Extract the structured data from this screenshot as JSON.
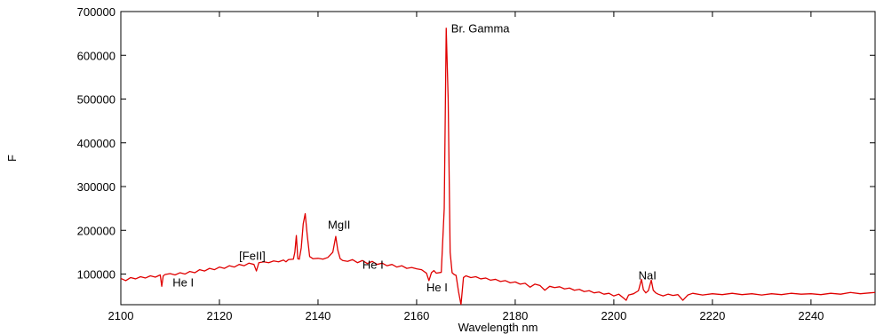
{
  "chart_data": {
    "type": "line",
    "title": "",
    "xlabel": "Wavelength nm",
    "ylabel": "F",
    "xlim": [
      2100,
      2253
    ],
    "ylim": [
      30000,
      700000
    ],
    "grid": false,
    "legend": "none",
    "line_color": "#e00000",
    "x_ticks": [
      2100,
      2120,
      2140,
      2160,
      2180,
      2200,
      2220,
      2240
    ],
    "y_ticks": [
      100000,
      200000,
      300000,
      400000,
      500000,
      600000,
      700000
    ],
    "x_tick_labels": [
      "2100",
      "2120",
      "2140",
      "2160",
      "2180",
      "2200",
      "2220",
      "2240"
    ],
    "y_tick_labels": [
      "100000",
      "200000",
      "300000",
      "400000",
      "500000",
      "600000",
      "700000"
    ],
    "annotations": [
      {
        "text": "He I",
        "x": 2110.5,
        "y": 72000
      },
      {
        "text": "[FeII]",
        "x": 2124,
        "y": 133000
      },
      {
        "text": "MgII",
        "x": 2142,
        "y": 204000
      },
      {
        "text": "He I",
        "x": 2149,
        "y": 112000
      },
      {
        "text": "Br. Gamma",
        "x": 2167,
        "y": 652000
      },
      {
        "text": "He I",
        "x": 2162,
        "y": 60000
      },
      {
        "text": "NaI",
        "x": 2205,
        "y": 88000
      }
    ],
    "series": [
      {
        "x": [
          2100,
          2101,
          2102,
          2103,
          2104,
          2105,
          2106,
          2107,
          2108,
          2108.3,
          2108.6,
          2109,
          2110,
          2111,
          2112,
          2113,
          2114,
          2115,
          2116,
          2117,
          2118,
          2119,
          2120,
          2121,
          2122,
          2123,
          2124,
          2125,
          2126,
          2127,
          2127.5,
          2128,
          2129,
          2130,
          2131,
          2132,
          2133,
          2133.5,
          2134,
          2135,
          2135.3,
          2135.6,
          2135.9,
          2136.2,
          2136.6,
          2137,
          2137.4,
          2137.8,
          2138.3,
          2139,
          2140,
          2141,
          2142,
          2143,
          2143.6,
          2144,
          2144.5,
          2145,
          2146,
          2147,
          2148,
          2149,
          2150,
          2151,
          2152,
          2153,
          2154,
          2155,
          2156,
          2157,
          2158,
          2159,
          2160,
          2161,
          2162,
          2162.5,
          2163,
          2163.5,
          2164,
          2165,
          2165.6,
          2166,
          2166.4,
          2166.8,
          2167.2,
          2167.6,
          2168,
          2168.5,
          2169,
          2169.5,
          2170,
          2171,
          2172,
          2173,
          2174,
          2175,
          2176,
          2177,
          2178,
          2179,
          2180,
          2181,
          2182,
          2183,
          2184,
          2185,
          2186,
          2187,
          2188,
          2189,
          2190,
          2191,
          2192,
          2193,
          2194,
          2195,
          2196,
          2197,
          2198,
          2199,
          2200,
          2201,
          2202,
          2202.5,
          2203,
          2204,
          2205,
          2205.6,
          2206,
          2206.5,
          2207,
          2207.6,
          2208,
          2208.5,
          2209,
          2210,
          2211,
          2212,
          2213,
          2214,
          2215,
          2216,
          2218,
          2220,
          2222,
          2224,
          2226,
          2228,
          2230,
          2232,
          2234,
          2236,
          2238,
          2240,
          2242,
          2244,
          2246,
          2248,
          2250,
          2252,
          2253
        ],
        "y": [
          90000,
          85000,
          92000,
          89000,
          94000,
          91000,
          96000,
          93000,
          98000,
          72000,
          96000,
          99000,
          101000,
          98000,
          103000,
          100000,
          106000,
          103000,
          110000,
          107000,
          113000,
          110000,
          116000,
          113000,
          119000,
          116000,
          122000,
          119000,
          125000,
          122000,
          107000,
          126000,
          128000,
          126000,
          130000,
          128000,
          132000,
          128000,
          133000,
          134000,
          150000,
          188000,
          135000,
          134000,
          160000,
          215000,
          238000,
          190000,
          140000,
          135000,
          136000,
          134000,
          138000,
          150000,
          186000,
          155000,
          135000,
          131000,
          129000,
          133000,
          126000,
          131000,
          124000,
          129000,
          122000,
          125000,
          119000,
          122000,
          116000,
          119000,
          113000,
          115000,
          112000,
          110000,
          102000,
          85000,
          103000,
          108000,
          102000,
          104000,
          250000,
          662000,
          500000,
          150000,
          103000,
          99000,
          97000,
          60000,
          30000,
          92000,
          96000,
          92000,
          94000,
          89000,
          91000,
          86000,
          88000,
          83000,
          85000,
          80000,
          82000,
          77000,
          79000,
          70000,
          77000,
          74000,
          63000,
          72000,
          69000,
          71000,
          66000,
          68000,
          63000,
          65000,
          60000,
          62000,
          57000,
          59000,
          54000,
          56000,
          50000,
          54000,
          45000,
          40000,
          52000,
          55000,
          62000,
          88000,
          64000,
          57000,
          62000,
          86000,
          63000,
          57000,
          54000,
          50000,
          54000,
          51000,
          53000,
          40000,
          52000,
          56000,
          52000,
          55000,
          53000,
          56000,
          53000,
          55000,
          52000,
          55000,
          53000,
          56000,
          54000,
          55000,
          53000,
          56000,
          54000,
          58000,
          55000,
          57000,
          58000
        ]
      }
    ]
  }
}
